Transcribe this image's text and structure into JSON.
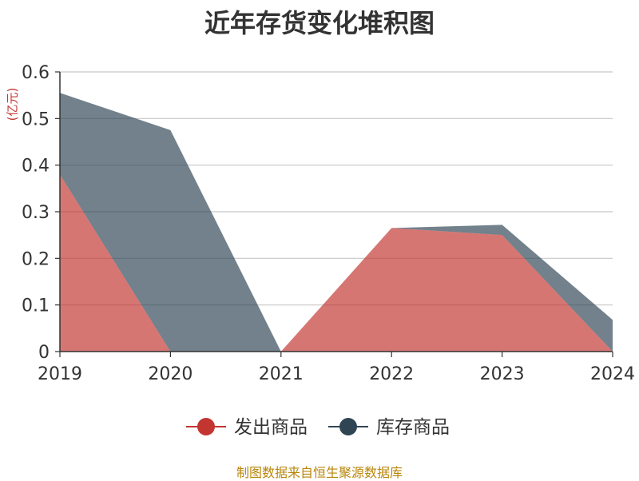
{
  "chart_data": {
    "type": "area",
    "stacked": true,
    "title": "近年存货变化堆积图",
    "unit_label": "(亿元)",
    "x": [
      "2019",
      "2020",
      "2021",
      "2022",
      "2023",
      "2024"
    ],
    "ylim": [
      0,
      0.6
    ],
    "yticks": [
      "0",
      "0.1",
      "0.2",
      "0.3",
      "0.4",
      "0.5",
      "0.6"
    ],
    "grid": true,
    "legend": "bottom",
    "series": [
      {
        "name": "发出商品",
        "values": [
          0.38,
          0,
          0,
          0.265,
          0.25,
          0
        ],
        "color": "#c23531"
      },
      {
        "name": "库存商品",
        "values": [
          0.175,
          0.475,
          0,
          0,
          0.022,
          0.068
        ],
        "color": "#2f4554"
      }
    ],
    "source": "制图数据来自恒生聚源数据库"
  }
}
